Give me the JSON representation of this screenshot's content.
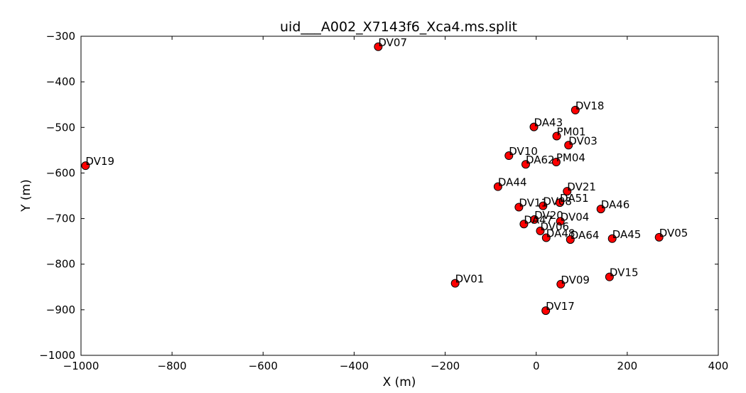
{
  "chart_data": {
    "type": "scatter",
    "title": "uid___A002_X7143f6_Xca4.ms.split",
    "xlabel": "X (m)",
    "ylabel": "Y (m)",
    "xlim": [
      -1000,
      400
    ],
    "ylim": [
      -1000,
      -300
    ],
    "xticks": [
      -1000,
      -800,
      -600,
      -400,
      -200,
      0,
      200,
      400
    ],
    "yticks": [
      -300,
      -400,
      -500,
      -600,
      -700,
      -800,
      -900,
      -1000
    ],
    "xtick_labels": [
      "−1000",
      "−800",
      "−600",
      "−400",
      "−200",
      "0",
      "200",
      "400"
    ],
    "ytick_labels": [
      "−300",
      "−400",
      "−500",
      "−600",
      "−700",
      "−800",
      "−900",
      "−1000"
    ],
    "grid": false,
    "marker_color": "#ff0000",
    "marker_edge_color": "#000000",
    "points": [
      {
        "name": "DV07",
        "x": -347,
        "y": -323
      },
      {
        "name": "DV18",
        "x": 86,
        "y": -462
      },
      {
        "name": "DA43",
        "x": -5,
        "y": -499
      },
      {
        "name": "PM01",
        "x": 45,
        "y": -519
      },
      {
        "name": "DV03",
        "x": 71,
        "y": -539
      },
      {
        "name": "DV10",
        "x": -60,
        "y": -562
      },
      {
        "name": "DA62",
        "x": -23,
        "y": -581
      },
      {
        "name": "PM04",
        "x": 44,
        "y": -576
      },
      {
        "name": "DV19",
        "x": -990,
        "y": -584
      },
      {
        "name": "DA44",
        "x": -84,
        "y": -630
      },
      {
        "name": "DV21",
        "x": 68,
        "y": -640
      },
      {
        "name": "DA51",
        "x": 52,
        "y": -665
      },
      {
        "name": "DV08",
        "x": 15,
        "y": -672
      },
      {
        "name": "DV11",
        "x": -38,
        "y": -675
      },
      {
        "name": "DA46",
        "x": 142,
        "y": -679
      },
      {
        "name": "DV20",
        "x": -4,
        "y": -702
      },
      {
        "name": "DV04",
        "x": 53,
        "y": -706
      },
      {
        "name": "DA47",
        "x": -27,
        "y": -712
      },
      {
        "name": "DV06",
        "x": 9,
        "y": -727
      },
      {
        "name": "DA48",
        "x": 22,
        "y": -742
      },
      {
        "name": "DA64",
        "x": 75,
        "y": -746
      },
      {
        "name": "DA45",
        "x": 167,
        "y": -744
      },
      {
        "name": "DV05",
        "x": 270,
        "y": -741
      },
      {
        "name": "DV15",
        "x": 161,
        "y": -828
      },
      {
        "name": "DV01",
        "x": -178,
        "y": -842
      },
      {
        "name": "DV09",
        "x": 54,
        "y": -844
      },
      {
        "name": "DV17",
        "x": 21,
        "y": -902
      }
    ]
  }
}
